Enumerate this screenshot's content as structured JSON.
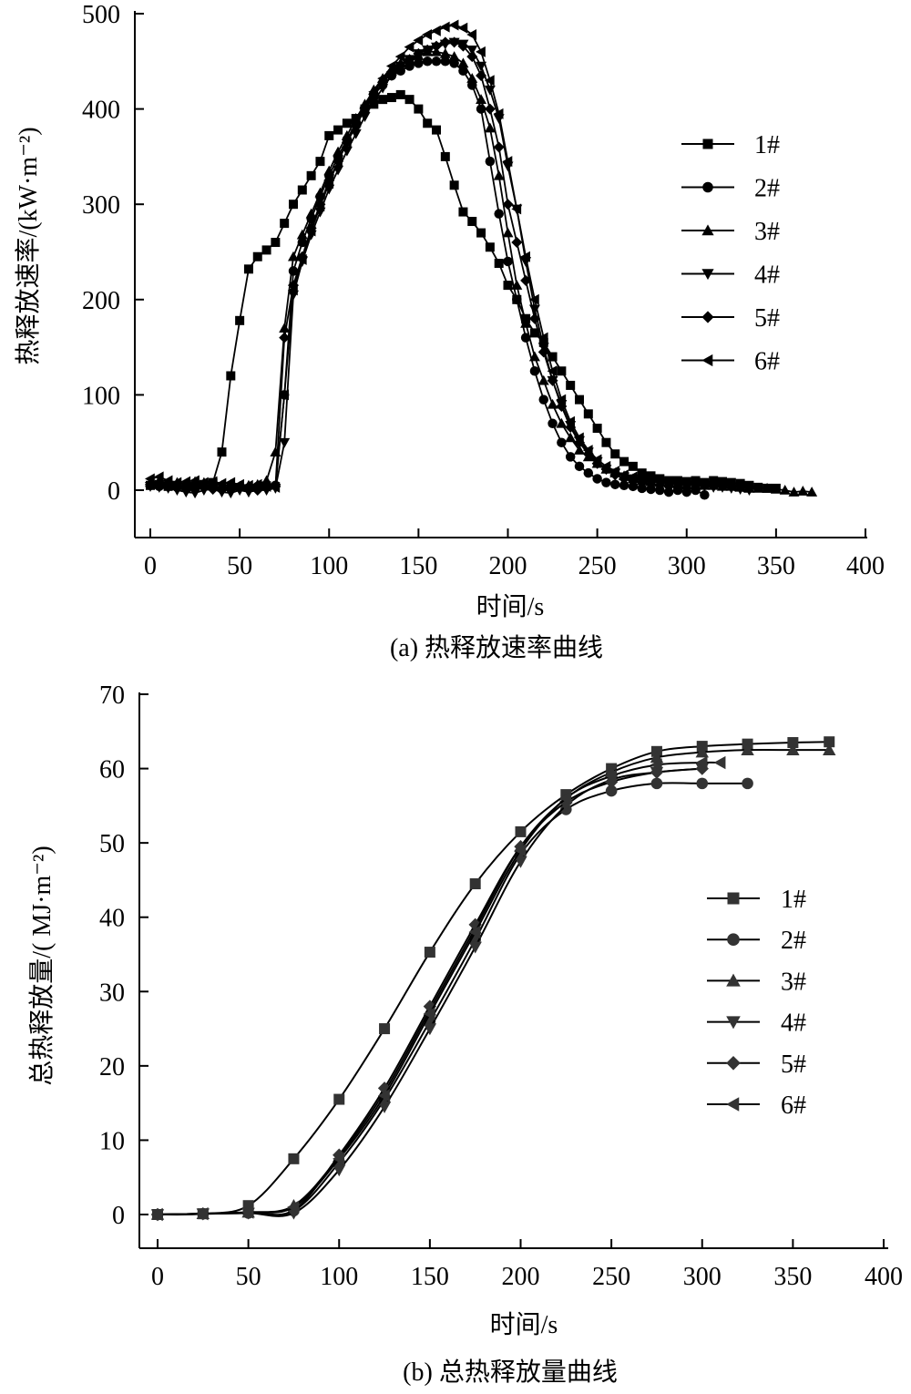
{
  "chart_data": [
    {
      "type": "line",
      "title": "",
      "caption": "(a) 热释放速率曲线",
      "xlabel": "时间/s",
      "ylabel": "热释放速率/(kW·m⁻²)",
      "xlim": [
        -10,
        400
      ],
      "ylim": [
        -50,
        500
      ],
      "xticks": [
        "0",
        "50",
        "100",
        "150",
        "200",
        "250",
        "300",
        "350",
        "400"
      ],
      "yticks": [
        "0",
        "100",
        "200",
        "300",
        "400",
        "500"
      ],
      "grid": false,
      "legend_position": "right",
      "series": [
        {
          "name": "1#",
          "marker": "square",
          "x0": 0,
          "dx": 5,
          "y": [
            5,
            6,
            4,
            5,
            3,
            4,
            6,
            8,
            40,
            120,
            178,
            232,
            245,
            252,
            260,
            280,
            300,
            315,
            330,
            345,
            372,
            378,
            385,
            390,
            400,
            405,
            410,
            412,
            415,
            410,
            400,
            385,
            378,
            350,
            320,
            292,
            282,
            270,
            255,
            238,
            215,
            200,
            180,
            165,
            155,
            140,
            125,
            110,
            95,
            80,
            65,
            50,
            38,
            30,
            25,
            18,
            15,
            12,
            10,
            10,
            9,
            10,
            8,
            10,
            9,
            8,
            7,
            5,
            3,
            2,
            2
          ]
        },
        {
          "name": "2#",
          "marker": "circle",
          "x0": 0,
          "dx": 5,
          "y": [
            5,
            4,
            6,
            3,
            2,
            5,
            4,
            3,
            2,
            4,
            3,
            2,
            4,
            5,
            5,
            100,
            230,
            260,
            285,
            308,
            330,
            350,
            368,
            385,
            400,
            415,
            425,
            435,
            440,
            445,
            448,
            450,
            450,
            450,
            448,
            440,
            425,
            400,
            345,
            290,
            240,
            200,
            160,
            125,
            95,
            70,
            50,
            35,
            25,
            18,
            12,
            8,
            6,
            5,
            4,
            2,
            1,
            0,
            -2,
            0,
            -2,
            0,
            -5
          ]
        },
        {
          "name": "3#",
          "marker": "triangle-up",
          "x0": 0,
          "dx": 5,
          "y": [
            8,
            10,
            7,
            8,
            6,
            9,
            8,
            7,
            5,
            6,
            4,
            5,
            6,
            10,
            40,
            170,
            245,
            268,
            290,
            312,
            335,
            355,
            372,
            390,
            405,
            420,
            432,
            440,
            448,
            452,
            456,
            460,
            460,
            458,
            455,
            448,
            432,
            410,
            380,
            330,
            270,
            215,
            175,
            140,
            115,
            90,
            70,
            55,
            42,
            35,
            28,
            22,
            18,
            15,
            12,
            10,
            9,
            8,
            8,
            7,
            6,
            6,
            5,
            5,
            4,
            4,
            3,
            2,
            2,
            2,
            1,
            0,
            -2,
            -1,
            -2
          ]
        },
        {
          "name": "4#",
          "marker": "triangle-down",
          "x0": 0,
          "dx": 5,
          "y": [
            4,
            3,
            2,
            0,
            -2,
            -3,
            0,
            1,
            -2,
            -3,
            0,
            -2,
            0,
            0,
            2,
            50,
            205,
            240,
            268,
            292,
            316,
            336,
            356,
            374,
            392,
            408,
            422,
            435,
            445,
            452,
            458,
            462,
            465,
            468,
            470,
            468,
            462,
            445,
            420,
            390,
            340,
            295,
            240,
            190,
            150,
            115,
            90,
            68,
            52,
            40,
            30,
            22,
            18,
            14,
            12,
            10,
            8,
            8,
            7,
            6,
            5,
            5,
            4,
            3,
            3,
            2,
            1,
            0
          ]
        },
        {
          "name": "5#",
          "marker": "diamond",
          "x0": 0,
          "dx": 5,
          "y": [
            6,
            5,
            4,
            3,
            2,
            4,
            3,
            1,
            0,
            2,
            3,
            1,
            0,
            2,
            4,
            160,
            215,
            245,
            275,
            300,
            325,
            345,
            365,
            382,
            400,
            415,
            428,
            438,
            446,
            452,
            458,
            462,
            466,
            470,
            470,
            466,
            455,
            435,
            400,
            360,
            300,
            260,
            220,
            180,
            145,
            115,
            88,
            66,
            50,
            38,
            28,
            22,
            16,
            12,
            10,
            8,
            6,
            5,
            4,
            3,
            2,
            2
          ]
        },
        {
          "name": "6#",
          "marker": "triangle-left",
          "x0": 0,
          "dx": 5,
          "y": [
            12,
            14,
            10,
            8,
            9,
            10,
            8,
            9,
            7,
            8,
            6,
            5,
            6,
            4,
            3,
            100,
            210,
            242,
            272,
            298,
            322,
            345,
            365,
            385,
            402,
            418,
            432,
            445,
            455,
            465,
            472,
            478,
            482,
            486,
            488,
            485,
            478,
            460,
            430,
            395,
            345,
            295,
            245,
            200,
            160,
            125,
            95,
            72,
            55,
            42,
            32,
            25,
            20,
            16,
            14,
            12,
            10,
            10,
            9,
            8,
            8,
            7,
            6,
            6,
            5,
            4,
            3
          ]
        }
      ]
    },
    {
      "type": "line",
      "title": "",
      "caption": "(b) 总热释放量曲线",
      "xlabel": "时间/s",
      "ylabel": "总热释放量/( MJ·m⁻²)",
      "xlim": [
        -10,
        400
      ],
      "ylim": [
        -4,
        70
      ],
      "xticks": [
        "0",
        "50",
        "100",
        "150",
        "200",
        "250",
        "300",
        "350",
        "400"
      ],
      "yticks": [
        "0",
        "10",
        "20",
        "30",
        "40",
        "50",
        "60",
        "70"
      ],
      "grid": false,
      "legend_position": "right",
      "series": [
        {
          "name": "1#",
          "marker": "square",
          "x": [
            0,
            25,
            50,
            75,
            100,
            125,
            150,
            175,
            200,
            225,
            250,
            275,
            300,
            325,
            350,
            370
          ],
          "y": [
            0,
            0.1,
            1.2,
            7.5,
            15.5,
            25,
            35.3,
            44.5,
            51.5,
            56.5,
            60,
            62.3,
            63,
            63.3,
            63.5,
            63.6
          ]
        },
        {
          "name": "2#",
          "marker": "circle",
          "x": [
            0,
            25,
            50,
            75,
            100,
            125,
            150,
            175,
            200,
            225,
            250,
            275,
            300,
            325
          ],
          "y": [
            0,
            0.1,
            0.2,
            0.5,
            7,
            15.5,
            26,
            37,
            48.5,
            54.5,
            57,
            58,
            58,
            58
          ]
        },
        {
          "name": "3#",
          "marker": "triangle-up",
          "x": [
            0,
            25,
            50,
            75,
            100,
            125,
            150,
            175,
            200,
            225,
            250,
            275,
            300,
            325,
            350,
            370
          ],
          "y": [
            0,
            0.1,
            0.3,
            1.2,
            7.8,
            16.5,
            27.5,
            38.5,
            49.5,
            56,
            59.5,
            61.5,
            62.2,
            62.5,
            62.5,
            62.5
          ]
        },
        {
          "name": "4#",
          "marker": "triangle-down",
          "x": [
            0,
            25,
            50,
            75,
            100,
            125,
            150,
            175,
            200,
            225,
            250,
            275,
            300
          ],
          "y": [
            0,
            0.1,
            0.2,
            0.2,
            6,
            14.5,
            25,
            36,
            47.5,
            55,
            58.5,
            59.5,
            60
          ]
        },
        {
          "name": "5#",
          "marker": "diamond",
          "x": [
            0,
            25,
            50,
            75,
            100,
            125,
            150,
            175,
            200,
            225,
            250,
            275,
            300
          ],
          "y": [
            0,
            0.1,
            0.3,
            0.6,
            8,
            17,
            28,
            39,
            49.5,
            55.5,
            58.2,
            59.5,
            60
          ]
        },
        {
          "name": "6#",
          "marker": "triangle-left",
          "x": [
            0,
            25,
            50,
            75,
            100,
            125,
            150,
            175,
            200,
            225,
            250,
            275,
            300,
            310
          ],
          "y": [
            0,
            0.1,
            0.3,
            1,
            7.5,
            16,
            27,
            38,
            49,
            56,
            59,
            60.5,
            60.8,
            60.8
          ]
        }
      ]
    }
  ]
}
